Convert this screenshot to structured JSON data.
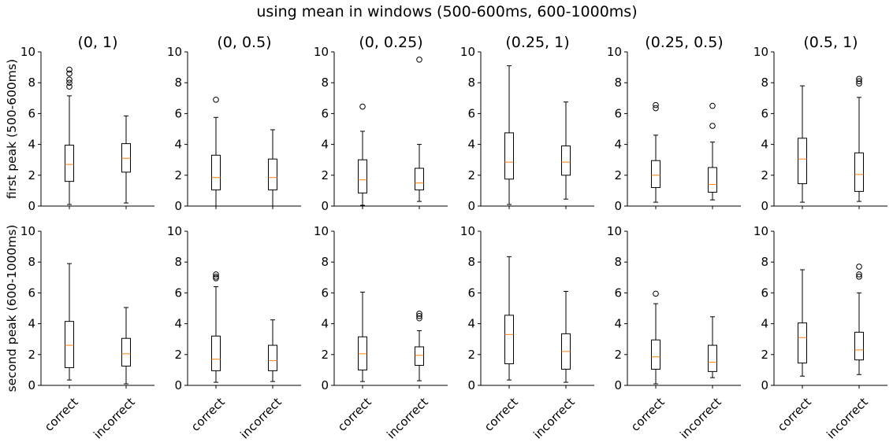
{
  "chart_data": {
    "type": "box",
    "title": "using mean in windows (500-600ms, 600-1000ms)",
    "categories": [
      "correct",
      "incorrect"
    ],
    "ylim": [
      0,
      10
    ],
    "yticks": [
      0,
      2,
      4,
      6,
      8,
      10
    ],
    "columns": [
      "(0, 1)",
      "(0, 0.5)",
      "(0, 0.25)",
      "(0.25, 1)",
      "(0.25, 0.5)",
      "(0.5, 1)"
    ],
    "rows": [
      {
        "ylabel": "first peak (500-600ms)",
        "panels": [
          {
            "title": "(0, 1)",
            "boxes": [
              {
                "category": "correct",
                "min": 0.1,
                "q1": 1.6,
                "median": 2.7,
                "q3": 3.95,
                "max": 7.15,
                "outliers": [
                  7.75,
                  8.0,
                  8.2,
                  8.6,
                  8.85
                ]
              },
              {
                "category": "incorrect",
                "min": 0.2,
                "q1": 2.2,
                "median": 3.1,
                "q3": 4.05,
                "max": 5.85,
                "outliers": []
              }
            ]
          },
          {
            "title": "(0, 0.5)",
            "boxes": [
              {
                "category": "correct",
                "min": 0.0,
                "q1": 1.05,
                "median": 1.85,
                "q3": 3.3,
                "max": 5.75,
                "outliers": [
                  6.9
                ]
              },
              {
                "category": "incorrect",
                "min": 0.0,
                "q1": 1.05,
                "median": 1.85,
                "q3": 3.05,
                "max": 4.95,
                "outliers": []
              }
            ]
          },
          {
            "title": "(0, 0.25)",
            "boxes": [
              {
                "category": "correct",
                "min": 0.05,
                "q1": 0.85,
                "median": 1.7,
                "q3": 3.0,
                "max": 4.85,
                "outliers": [
                  6.45
                ]
              },
              {
                "category": "incorrect",
                "min": 0.3,
                "q1": 1.05,
                "median": 1.5,
                "q3": 2.45,
                "max": 4.0,
                "outliers": [
                  9.5
                ]
              }
            ]
          },
          {
            "title": "(0.25, 1)",
            "boxes": [
              {
                "category": "correct",
                "min": 0.1,
                "q1": 1.75,
                "median": 2.85,
                "q3": 4.75,
                "max": 9.1,
                "outliers": []
              },
              {
                "category": "incorrect",
                "min": 0.45,
                "q1": 2.0,
                "median": 2.85,
                "q3": 3.9,
                "max": 6.75,
                "outliers": []
              }
            ]
          },
          {
            "title": "(0.25, 0.5)",
            "boxes": [
              {
                "category": "correct",
                "min": 0.25,
                "q1": 1.2,
                "median": 2.0,
                "q3": 2.95,
                "max": 4.6,
                "outliers": [
                  6.35,
                  6.55
                ]
              },
              {
                "category": "incorrect",
                "min": 0.4,
                "q1": 0.9,
                "median": 1.4,
                "q3": 2.5,
                "max": 4.15,
                "outliers": [
                  5.2,
                  6.5
                ]
              }
            ]
          },
          {
            "title": "(0.5, 1)",
            "boxes": [
              {
                "category": "correct",
                "min": 0.25,
                "q1": 1.45,
                "median": 3.05,
                "q3": 4.4,
                "max": 7.8,
                "outliers": []
              },
              {
                "category": "incorrect",
                "min": 0.3,
                "q1": 0.95,
                "median": 2.05,
                "q3": 3.45,
                "max": 7.05,
                "outliers": [
                  7.95,
                  8.1,
                  8.25
                ]
              }
            ]
          }
        ]
      },
      {
        "ylabel": "second peak (600-1000ms)",
        "panels": [
          {
            "title": "(0, 1)",
            "boxes": [
              {
                "category": "correct",
                "min": 0.35,
                "q1": 1.15,
                "median": 2.6,
                "q3": 4.15,
                "max": 7.9,
                "outliers": []
              },
              {
                "category": "incorrect",
                "min": 0.1,
                "q1": 1.25,
                "median": 2.05,
                "q3": 3.05,
                "max": 5.05,
                "outliers": []
              }
            ]
          },
          {
            "title": "(0, 0.5)",
            "boxes": [
              {
                "category": "correct",
                "min": 0.2,
                "q1": 0.95,
                "median": 1.7,
                "q3": 3.2,
                "max": 6.4,
                "outliers": [
                  6.95,
                  7.05,
                  7.2
                ]
              },
              {
                "category": "incorrect",
                "min": 0.25,
                "q1": 0.95,
                "median": 1.6,
                "q3": 2.6,
                "max": 4.25,
                "outliers": []
              }
            ]
          },
          {
            "title": "(0, 0.25)",
            "boxes": [
              {
                "category": "correct",
                "min": 0.25,
                "q1": 1.0,
                "median": 2.05,
                "q3": 3.15,
                "max": 6.05,
                "outliers": []
              },
              {
                "category": "incorrect",
                "min": 0.3,
                "q1": 1.3,
                "median": 1.95,
                "q3": 2.5,
                "max": 3.55,
                "outliers": [
                  4.35,
                  4.5,
                  4.65
                ]
              }
            ]
          },
          {
            "title": "(0.25, 1)",
            "boxes": [
              {
                "category": "correct",
                "min": 0.35,
                "q1": 1.4,
                "median": 3.3,
                "q3": 4.55,
                "max": 8.35,
                "outliers": []
              },
              {
                "category": "incorrect",
                "min": 0.2,
                "q1": 1.05,
                "median": 2.2,
                "q3": 3.35,
                "max": 6.1,
                "outliers": []
              }
            ]
          },
          {
            "title": "(0.25, 0.5)",
            "boxes": [
              {
                "category": "correct",
                "min": 0.1,
                "q1": 1.05,
                "median": 1.85,
                "q3": 2.95,
                "max": 5.3,
                "outliers": [
                  5.95
                ]
              },
              {
                "category": "incorrect",
                "min": 0.5,
                "q1": 0.9,
                "median": 1.5,
                "q3": 2.6,
                "max": 4.45,
                "outliers": []
              }
            ]
          },
          {
            "title": "(0.5, 1)",
            "boxes": [
              {
                "category": "correct",
                "min": 0.6,
                "q1": 1.45,
                "median": 3.1,
                "q3": 4.05,
                "max": 7.5,
                "outliers": []
              },
              {
                "category": "incorrect",
                "min": 0.7,
                "q1": 1.65,
                "median": 2.3,
                "q3": 3.45,
                "max": 6.0,
                "outliers": [
                  7.05,
                  7.2,
                  7.7
                ]
              }
            ]
          }
        ]
      }
    ],
    "colors": {
      "box": "#000000",
      "median": "#ff7f0e",
      "background": "#ffffff"
    }
  }
}
